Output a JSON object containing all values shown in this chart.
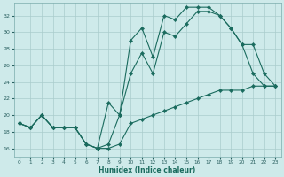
{
  "xlabel": "Humidex (Indice chaleur)",
  "background_color": "#ceeaea",
  "grid_color": "#aacccc",
  "line_color": "#1a6b5e",
  "xlim": [
    -0.5,
    23.5
  ],
  "ylim": [
    15,
    33.5
  ],
  "yticks": [
    16,
    18,
    20,
    22,
    24,
    26,
    28,
    30,
    32
  ],
  "xticks": [
    0,
    1,
    2,
    3,
    4,
    5,
    6,
    7,
    8,
    9,
    10,
    11,
    12,
    13,
    14,
    15,
    16,
    17,
    18,
    19,
    20,
    21,
    22,
    23
  ],
  "line1_x": [
    0,
    1,
    2,
    3,
    4,
    5,
    6,
    7,
    8,
    9,
    10,
    11,
    12,
    13,
    14,
    15,
    16,
    17,
    18,
    19,
    20,
    21,
    22,
    23
  ],
  "line1_y": [
    19.0,
    18.5,
    20.0,
    18.5,
    18.5,
    18.5,
    16.5,
    16.0,
    16.0,
    16.5,
    19.0,
    19.5,
    20.0,
    20.5,
    21.0,
    21.5,
    22.0,
    22.5,
    23.0,
    23.0,
    23.0,
    23.5,
    23.5,
    23.5
  ],
  "line2_x": [
    0,
    1,
    2,
    3,
    4,
    5,
    6,
    7,
    8,
    9,
    10,
    11,
    12,
    13,
    14,
    15,
    16,
    17,
    18,
    19,
    20,
    21,
    22,
    23
  ],
  "line2_y": [
    19.0,
    18.5,
    20.0,
    18.5,
    18.5,
    18.5,
    16.5,
    16.0,
    21.5,
    20.0,
    29.0,
    30.5,
    27.0,
    32.0,
    31.5,
    33.0,
    33.0,
    33.0,
    32.0,
    30.5,
    28.5,
    25.0,
    23.5,
    23.5
  ],
  "line3_x": [
    0,
    1,
    2,
    3,
    4,
    5,
    6,
    7,
    8,
    9,
    10,
    11,
    12,
    13,
    14,
    15,
    16,
    17,
    18,
    19,
    20,
    21,
    22,
    23
  ],
  "line3_y": [
    19.0,
    18.5,
    20.0,
    18.5,
    18.5,
    18.5,
    16.5,
    16.0,
    16.5,
    20.0,
    25.0,
    27.5,
    25.0,
    30.0,
    29.5,
    31.0,
    32.5,
    32.5,
    32.0,
    30.5,
    28.5,
    28.5,
    25.0,
    23.5
  ]
}
